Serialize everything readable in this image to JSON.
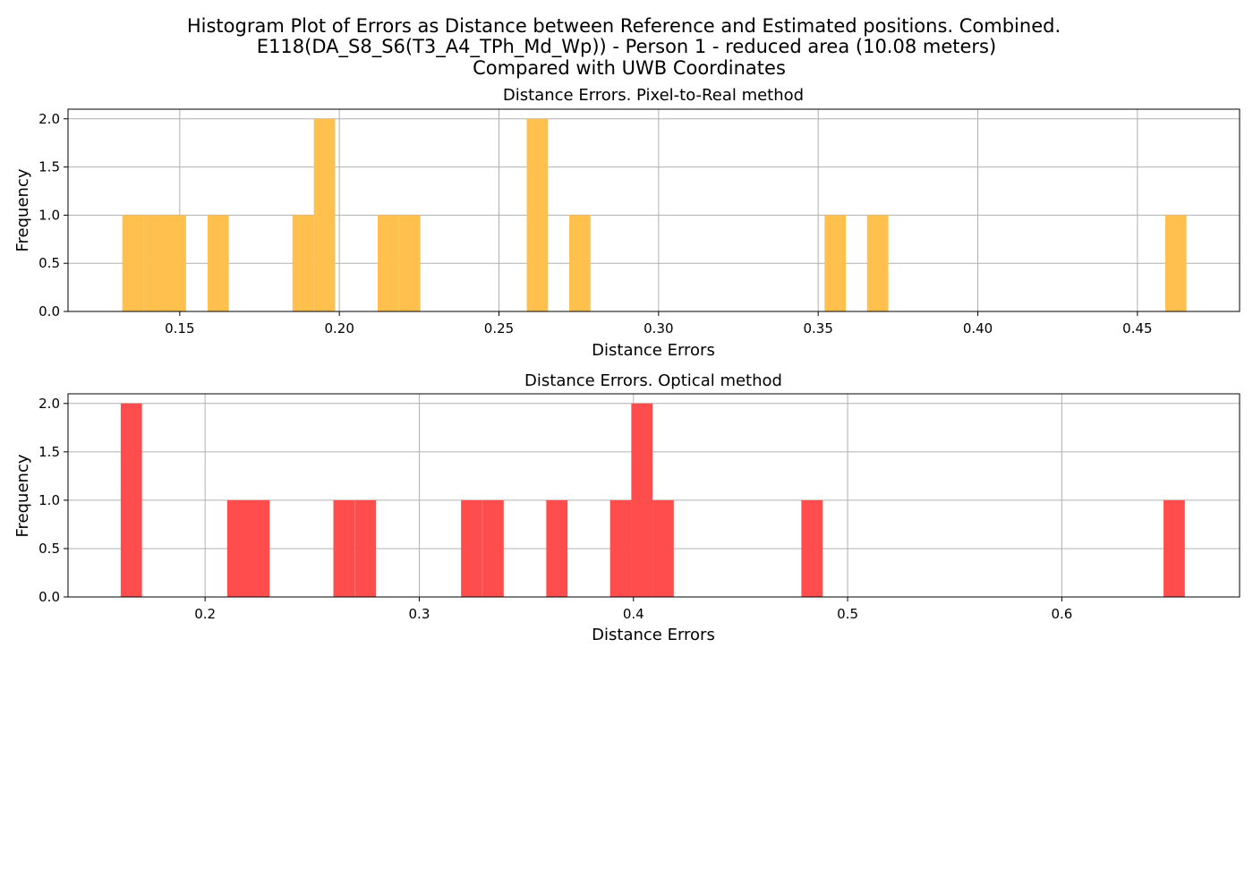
{
  "title_lines": [
    "Histogram Plot of Errors as Distance between Reference and Estimated positions. Combined.",
    "E118(DA_S8_S6(T3_A4_TPh_Md_Wp)) - Person 1 - reduced area (10.08 meters)",
    "Compared with UWB Coordinates"
  ],
  "colors": {
    "grid": "#b0b0b0",
    "axis": "#000000"
  },
  "chart_data": [
    {
      "type": "bar",
      "title": "Distance Errors. Pixel-to-Real method",
      "xlabel": "Distance Errors",
      "ylabel": "Frequency",
      "color": "#FFC04D",
      "grid": true,
      "xlim": [
        0.115,
        0.482
      ],
      "ylim": [
        0,
        2.1
      ],
      "xticks": [
        0.15,
        0.2,
        0.25,
        0.3,
        0.35,
        0.4,
        0.45
      ],
      "xtick_labels": [
        "0.15",
        "0.20",
        "0.25",
        "0.30",
        "0.35",
        "0.40",
        "0.45"
      ],
      "yticks": [
        0.0,
        0.5,
        1.0,
        1.5,
        2.0
      ],
      "ytick_labels": [
        "0.0",
        "0.5",
        "1.0",
        "1.5",
        "2.0"
      ],
      "bin_width": 0.00667,
      "bins": [
        {
          "x": 0.132,
          "count": 1
        },
        {
          "x": 0.1387,
          "count": 1
        },
        {
          "x": 0.1453,
          "count": 1
        },
        {
          "x": 0.1587,
          "count": 1
        },
        {
          "x": 0.1853,
          "count": 1
        },
        {
          "x": 0.192,
          "count": 2
        },
        {
          "x": 0.212,
          "count": 1
        },
        {
          "x": 0.2187,
          "count": 1
        },
        {
          "x": 0.2587,
          "count": 2
        },
        {
          "x": 0.272,
          "count": 1
        },
        {
          "x": 0.352,
          "count": 1
        },
        {
          "x": 0.3653,
          "count": 1
        },
        {
          "x": 0.4587,
          "count": 1
        }
      ]
    },
    {
      "type": "bar",
      "title": "Distance Errors. Optical method",
      "xlabel": "Distance Errors",
      "ylabel": "Frequency",
      "color": "#FF4D4D",
      "grid": true,
      "xlim": [
        0.136,
        0.683
      ],
      "ylim": [
        0,
        2.1
      ],
      "xticks": [
        0.2,
        0.3,
        0.4,
        0.5,
        0.6
      ],
      "xtick_labels": [
        "0.2",
        "0.3",
        "0.4",
        "0.5",
        "0.6"
      ],
      "yticks": [
        0.0,
        0.5,
        1.0,
        1.5,
        2.0
      ],
      "ytick_labels": [
        "0.0",
        "0.5",
        "1.0",
        "1.5",
        "2.0"
      ],
      "bin_width": 0.00993,
      "bins": [
        {
          "x": 0.1606,
          "count": 2
        },
        {
          "x": 0.2103,
          "count": 1
        },
        {
          "x": 0.2202,
          "count": 1
        },
        {
          "x": 0.2599,
          "count": 1
        },
        {
          "x": 0.2699,
          "count": 1
        },
        {
          "x": 0.3195,
          "count": 1
        },
        {
          "x": 0.3295,
          "count": 1
        },
        {
          "x": 0.3593,
          "count": 1
        },
        {
          "x": 0.3891,
          "count": 1
        },
        {
          "x": 0.399,
          "count": 2
        },
        {
          "x": 0.4089,
          "count": 1
        },
        {
          "x": 0.4784,
          "count": 1
        },
        {
          "x": 0.6475,
          "count": 1
        }
      ]
    }
  ]
}
